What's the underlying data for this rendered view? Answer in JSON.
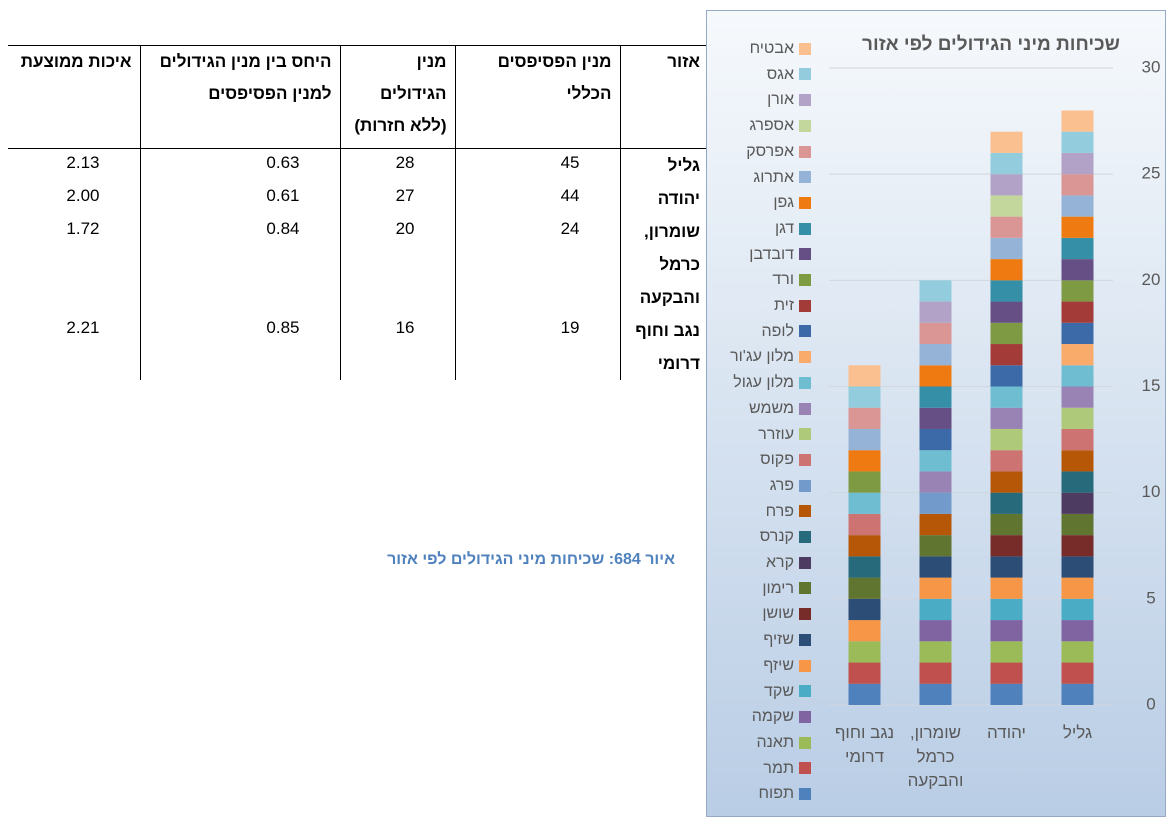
{
  "table": {
    "headers": [
      "אזור",
      "מנין הפסיפסים הכללי",
      "מנין הגידולים (ללא חזרות)",
      "היחס בין מנין הגידולים למנין הפסיפסים",
      "איכות ממוצעת"
    ],
    "rows": [
      [
        "גליל",
        "45",
        "28",
        "0.63",
        "2.13"
      ],
      [
        "יהודה",
        "44",
        "27",
        "0.61",
        "2.00"
      ],
      [
        "שומרון, כרמל והבקעה",
        "24",
        "20",
        "0.84",
        "1.72"
      ],
      [
        "נגב וחוף דרומי",
        "19",
        "16",
        "0.85",
        "2.21"
      ]
    ]
  },
  "caption": "איור 684: שכיחות מיני הגידולים לפי אזור",
  "chart_data": {
    "type": "bar",
    "stacked": true,
    "title": "שכיחות מיני הגידולים לפי אזור",
    "categories": [
      "גליל",
      "יהודה",
      "שומרון, כרמל והבקעה",
      "נגב וחוף דרומי"
    ],
    "ylim": [
      0,
      30
    ],
    "yticks": [
      0,
      5,
      10,
      15,
      20,
      25,
      30
    ],
    "grid": true,
    "legend": "left",
    "series": [
      {
        "name": "תפוח",
        "color": "#4f81bd",
        "values": [
          1,
          1,
          1,
          1
        ]
      },
      {
        "name": "תמר",
        "color": "#c0504d",
        "values": [
          1,
          1,
          1,
          1
        ]
      },
      {
        "name": "תאנה",
        "color": "#9bbb59",
        "values": [
          1,
          1,
          1,
          1
        ]
      },
      {
        "name": "שקמה",
        "color": "#8064a2",
        "values": [
          1,
          1,
          1,
          0
        ]
      },
      {
        "name": "שקד",
        "color": "#4bacc6",
        "values": [
          1,
          1,
          1,
          0
        ]
      },
      {
        "name": "שיזף",
        "color": "#f79646",
        "values": [
          1,
          1,
          1,
          1
        ]
      },
      {
        "name": "שזיף",
        "color": "#2c4d75",
        "values": [
          1,
          1,
          1,
          1
        ]
      },
      {
        "name": "שושן",
        "color": "#772c2a",
        "values": [
          1,
          1,
          0,
          0
        ]
      },
      {
        "name": "רימון",
        "color": "#5f7530",
        "values": [
          1,
          1,
          1,
          1
        ]
      },
      {
        "name": "קרא",
        "color": "#4d3b62",
        "values": [
          1,
          0,
          0,
          0
        ]
      },
      {
        "name": "קנרס",
        "color": "#276a7c",
        "values": [
          1,
          1,
          0,
          1
        ]
      },
      {
        "name": "פרח",
        "color": "#b65708",
        "values": [
          1,
          1,
          1,
          1
        ]
      },
      {
        "name": "פרג",
        "color": "#729aca",
        "values": [
          0,
          0,
          1,
          0
        ]
      },
      {
        "name": "פקוס",
        "color": "#cd7371",
        "values": [
          1,
          1,
          0,
          1
        ]
      },
      {
        "name": "עוזרר",
        "color": "#afc97a",
        "values": [
          1,
          1,
          0,
          0
        ]
      },
      {
        "name": "משמש",
        "color": "#9983b5",
        "values": [
          1,
          1,
          1,
          0
        ]
      },
      {
        "name": "מלון עגול",
        "color": "#6fbdd1",
        "values": [
          1,
          1,
          1,
          1
        ]
      },
      {
        "name": "מלון עג'ור",
        "color": "#f9ab6b",
        "values": [
          1,
          0,
          0,
          0
        ]
      },
      {
        "name": "לופה",
        "color": "#3c6aa8",
        "values": [
          1,
          1,
          1,
          0
        ]
      },
      {
        "name": "זית",
        "color": "#a33b38",
        "values": [
          1,
          1,
          0,
          0
        ]
      },
      {
        "name": "ורד",
        "color": "#7e9a42",
        "values": [
          1,
          1,
          0,
          1
        ]
      },
      {
        "name": "דובדבן",
        "color": "#654f85",
        "values": [
          1,
          1,
          1,
          0
        ]
      },
      {
        "name": "דגן",
        "color": "#358fa6",
        "values": [
          1,
          1,
          1,
          0
        ]
      },
      {
        "name": "גפן",
        "color": "#f07a12",
        "values": [
          1,
          1,
          1,
          1
        ]
      },
      {
        "name": "אתרוג",
        "color": "#95b3d7",
        "values": [
          1,
          1,
          1,
          1
        ]
      },
      {
        "name": "אפרסק",
        "color": "#d99694",
        "values": [
          1,
          1,
          1,
          1
        ]
      },
      {
        "name": "אספרג",
        "color": "#c3d69b",
        "values": [
          0,
          1,
          0,
          0
        ]
      },
      {
        "name": "אורן",
        "color": "#b3a2c7",
        "values": [
          1,
          1,
          1,
          0
        ]
      },
      {
        "name": "אגס",
        "color": "#93cddd",
        "values": [
          1,
          1,
          1,
          1
        ]
      },
      {
        "name": "אבטיח",
        "color": "#fac090",
        "values": [
          1,
          1,
          0,
          1
        ]
      }
    ]
  }
}
